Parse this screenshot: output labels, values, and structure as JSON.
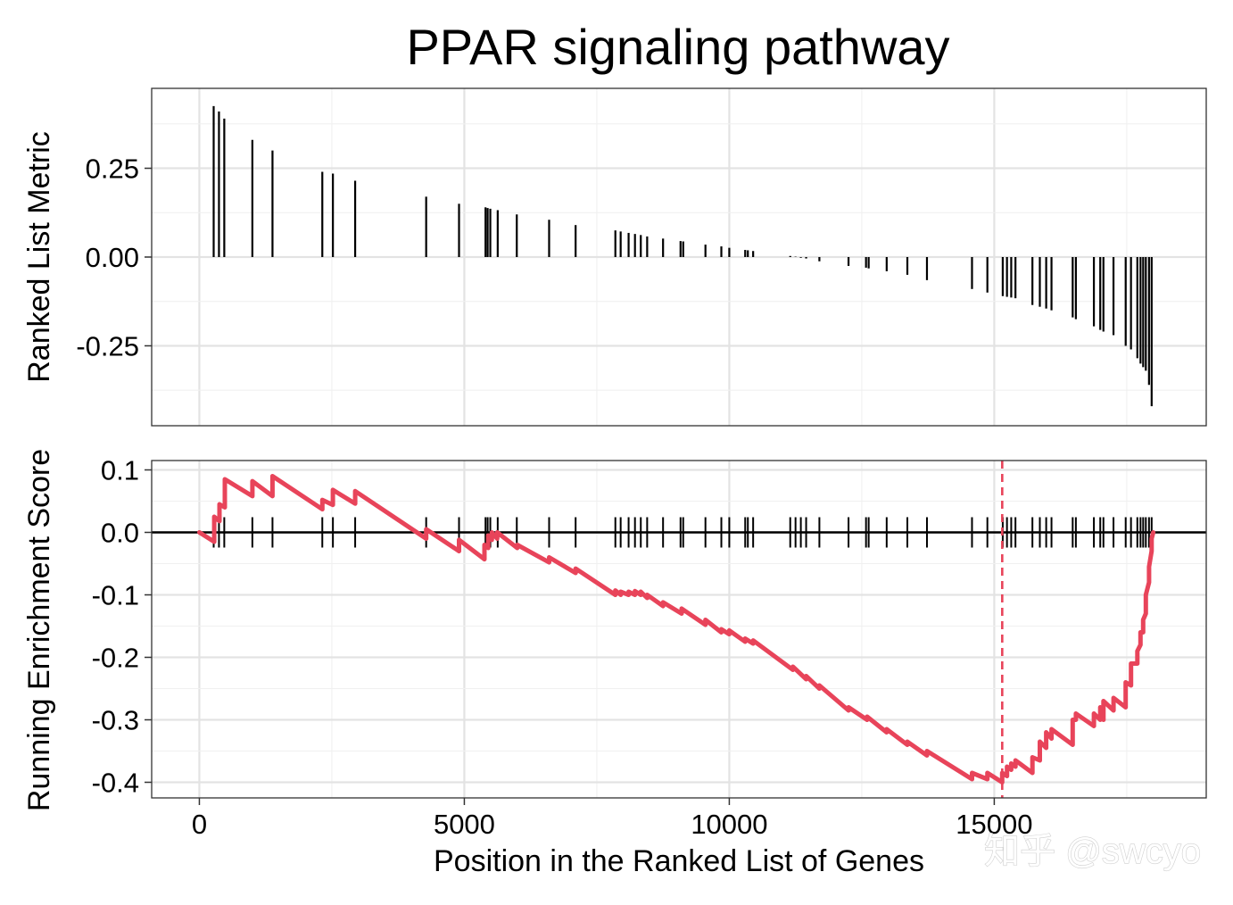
{
  "chart_data": [
    {
      "type": "bar",
      "title": "PPAR signaling pathway",
      "ylabel": "Ranked List Metric",
      "xlim": [
        -900,
        19000
      ],
      "ylim": [
        -0.475,
        0.475
      ],
      "yticks": [
        0.25,
        0.0,
        -0.25
      ],
      "ytick_labels": [
        "0.25",
        "0.00",
        "-0.25"
      ],
      "grid": true,
      "hits": [
        {
          "x": 270,
          "y": 0.425
        },
        {
          "x": 370,
          "y": 0.41
        },
        {
          "x": 470,
          "y": 0.39
        },
        {
          "x": 1000,
          "y": 0.33
        },
        {
          "x": 1380,
          "y": 0.3
        },
        {
          "x": 2320,
          "y": 0.24
        },
        {
          "x": 2520,
          "y": 0.235
        },
        {
          "x": 2940,
          "y": 0.215
        },
        {
          "x": 4280,
          "y": 0.17
        },
        {
          "x": 4900,
          "y": 0.15
        },
        {
          "x": 5400,
          "y": 0.14
        },
        {
          "x": 5440,
          "y": 0.138
        },
        {
          "x": 5490,
          "y": 0.136
        },
        {
          "x": 5630,
          "y": 0.132
        },
        {
          "x": 5990,
          "y": 0.12
        },
        {
          "x": 6600,
          "y": 0.105
        },
        {
          "x": 7100,
          "y": 0.09
        },
        {
          "x": 7850,
          "y": 0.075
        },
        {
          "x": 7950,
          "y": 0.072
        },
        {
          "x": 8100,
          "y": 0.068
        },
        {
          "x": 8220,
          "y": 0.065
        },
        {
          "x": 8330,
          "y": 0.062
        },
        {
          "x": 8450,
          "y": 0.058
        },
        {
          "x": 8750,
          "y": 0.052
        },
        {
          "x": 9080,
          "y": 0.045
        },
        {
          "x": 9130,
          "y": 0.044
        },
        {
          "x": 9550,
          "y": 0.035
        },
        {
          "x": 9850,
          "y": 0.03
        },
        {
          "x": 10000,
          "y": 0.026
        },
        {
          "x": 10300,
          "y": 0.02
        },
        {
          "x": 10350,
          "y": 0.019
        },
        {
          "x": 10450,
          "y": 0.017
        },
        {
          "x": 11150,
          "y": 0.003
        },
        {
          "x": 11250,
          "y": 0.001
        },
        {
          "x": 11350,
          "y": -0.002
        },
        {
          "x": 11450,
          "y": -0.004
        },
        {
          "x": 11700,
          "y": -0.012
        },
        {
          "x": 12250,
          "y": -0.025
        },
        {
          "x": 12580,
          "y": -0.03
        },
        {
          "x": 12630,
          "y": -0.032
        },
        {
          "x": 12970,
          "y": -0.04
        },
        {
          "x": 13360,
          "y": -0.05
        },
        {
          "x": 13730,
          "y": -0.065
        },
        {
          "x": 14580,
          "y": -0.09
        },
        {
          "x": 14870,
          "y": -0.1
        },
        {
          "x": 15160,
          "y": -0.11
        },
        {
          "x": 15240,
          "y": -0.112
        },
        {
          "x": 15320,
          "y": -0.114
        },
        {
          "x": 15400,
          "y": -0.116
        },
        {
          "x": 15720,
          "y": -0.135
        },
        {
          "x": 15860,
          "y": -0.14
        },
        {
          "x": 15980,
          "y": -0.145
        },
        {
          "x": 16080,
          "y": -0.15
        },
        {
          "x": 16480,
          "y": -0.17
        },
        {
          "x": 16540,
          "y": -0.175
        },
        {
          "x": 16880,
          "y": -0.195
        },
        {
          "x": 17000,
          "y": -0.205
        },
        {
          "x": 17060,
          "y": -0.21
        },
        {
          "x": 17250,
          "y": -0.22
        },
        {
          "x": 17480,
          "y": -0.25
        },
        {
          "x": 17580,
          "y": -0.26
        },
        {
          "x": 17700,
          "y": -0.285
        },
        {
          "x": 17760,
          "y": -0.3
        },
        {
          "x": 17810,
          "y": -0.31
        },
        {
          "x": 17860,
          "y": -0.32
        },
        {
          "x": 17920,
          "y": -0.36
        },
        {
          "x": 17970,
          "y": -0.42
        }
      ]
    },
    {
      "type": "line",
      "xlabel": "Position in the Ranked List of Genes",
      "ylabel": "Running Enrichment Score",
      "xlim": [
        -900,
        19000
      ],
      "ylim": [
        -0.425,
        0.115
      ],
      "xticks": [
        0,
        5000,
        10000,
        15000
      ],
      "xtick_labels": [
        "0",
        "5000",
        "10000",
        "15000"
      ],
      "yticks": [
        0.1,
        0.0,
        -0.1,
        -0.2,
        -0.3,
        -0.4
      ],
      "ytick_labels": [
        "0.1",
        "0.0",
        "-0.1",
        "-0.2",
        "-0.3",
        "-0.4"
      ],
      "grid": true,
      "series_color": "#e8445a",
      "max_deviation_position": 15150,
      "running_score": {
        "x": [
          0,
          280,
          280,
          380,
          380,
          480,
          480,
          1000,
          1000,
          1380,
          1380,
          2320,
          2320,
          2520,
          2520,
          2940,
          2940,
          4280,
          4280,
          4900,
          4900,
          5380,
          5380,
          5450,
          5450,
          5520,
          5520,
          5620,
          5620,
          6000,
          6000,
          6600,
          6600,
          7100,
          7100,
          7850,
          7850,
          7950,
          7950,
          8100,
          8100,
          8220,
          8220,
          8330,
          8330,
          8450,
          8450,
          8750,
          8750,
          9100,
          9100,
          9550,
          9550,
          9850,
          9850,
          10000,
          10000,
          10300,
          10300,
          10450,
          10450,
          11200,
          11200,
          11450,
          11450,
          11700,
          11700,
          12250,
          12250,
          12600,
          12600,
          12970,
          12970,
          13360,
          13360,
          13730,
          13730,
          14580,
          14580,
          14870,
          14870,
          15150,
          15150,
          15240,
          15240,
          15320,
          15320,
          15400,
          15400,
          15720,
          15720,
          15860,
          15860,
          15980,
          15980,
          16080,
          16080,
          16480,
          16480,
          16540,
          16540,
          16880,
          16880,
          17000,
          17000,
          17060,
          17060,
          17250,
          17250,
          17480,
          17480,
          17580,
          17580,
          17700,
          17700,
          17760,
          17760,
          17810,
          17810,
          17860,
          17860,
          17920,
          17920,
          17970,
          17970,
          18000
        ],
        "y": [
          0.0,
          -0.015,
          0.025,
          0.018,
          0.045,
          0.04,
          0.085,
          0.058,
          0.082,
          0.058,
          0.09,
          0.037,
          0.052,
          0.044,
          0.068,
          0.046,
          0.066,
          -0.01,
          0.005,
          -0.03,
          -0.012,
          -0.043,
          -0.02,
          -0.025,
          -0.005,
          -0.012,
          0.0,
          -0.01,
          0.0,
          -0.025,
          -0.02,
          -0.048,
          -0.04,
          -0.065,
          -0.058,
          -0.1,
          -0.093,
          -0.1,
          -0.095,
          -0.1,
          -0.095,
          -0.1,
          -0.094,
          -0.1,
          -0.095,
          -0.105,
          -0.1,
          -0.118,
          -0.112,
          -0.13,
          -0.122,
          -0.148,
          -0.14,
          -0.16,
          -0.155,
          -0.163,
          -0.157,
          -0.175,
          -0.17,
          -0.178,
          -0.173,
          -0.22,
          -0.215,
          -0.235,
          -0.23,
          -0.25,
          -0.245,
          -0.285,
          -0.28,
          -0.3,
          -0.295,
          -0.32,
          -0.315,
          -0.34,
          -0.335,
          -0.357,
          -0.35,
          -0.395,
          -0.385,
          -0.395,
          -0.385,
          -0.4,
          -0.385,
          -0.39,
          -0.375,
          -0.38,
          -0.37,
          -0.375,
          -0.365,
          -0.385,
          -0.36,
          -0.365,
          -0.335,
          -0.345,
          -0.32,
          -0.33,
          -0.315,
          -0.34,
          -0.3,
          -0.3,
          -0.29,
          -0.31,
          -0.29,
          -0.3,
          -0.28,
          -0.3,
          -0.27,
          -0.285,
          -0.265,
          -0.28,
          -0.24,
          -0.245,
          -0.21,
          -0.21,
          -0.19,
          -0.18,
          -0.16,
          -0.16,
          -0.14,
          -0.13,
          -0.1,
          -0.08,
          -0.055,
          -0.03,
          -0.01,
          0.0
        ]
      }
    }
  ],
  "watermark": "知乎 @swcyo"
}
